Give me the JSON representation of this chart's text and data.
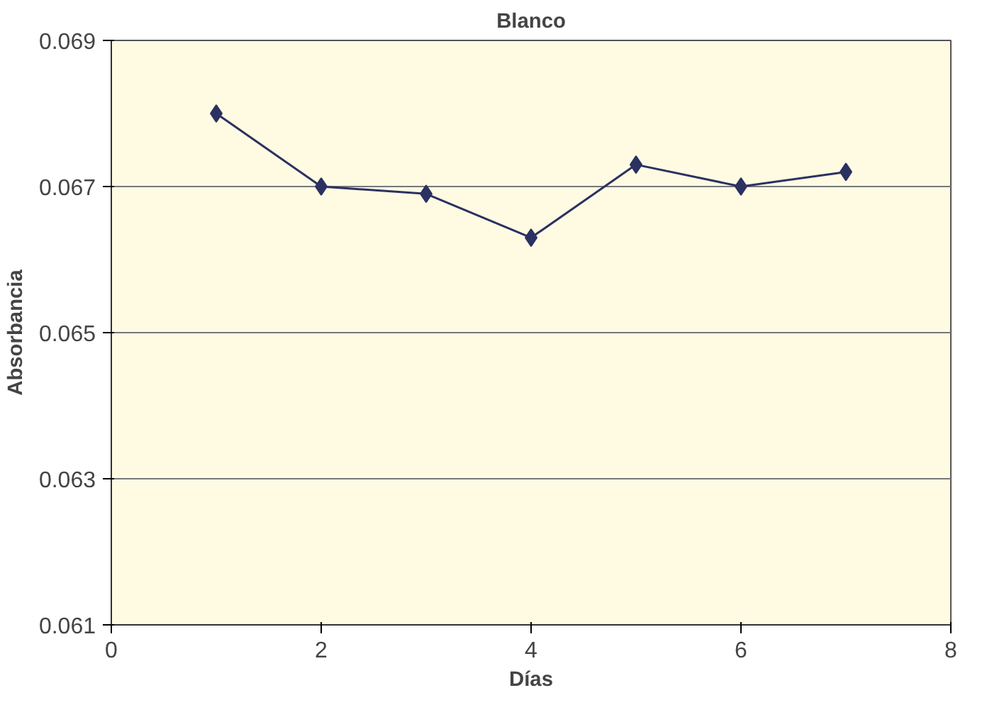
{
  "chart_data": {
    "type": "line",
    "title": "Blanco",
    "xlabel": "Días",
    "ylabel": "Absorbancia",
    "x": [
      1,
      2,
      3,
      4,
      5,
      6,
      7
    ],
    "series": [
      {
        "color": "#2b3160",
        "values": [
          0.068,
          0.067,
          0.0669,
          0.0663,
          0.0673,
          0.067,
          0.0672
        ]
      }
    ],
    "xlim": [
      0,
      8
    ],
    "xticks": [
      0,
      2,
      4,
      6,
      8
    ],
    "ylim": [
      0.061,
      0.069
    ],
    "yticks": [
      0.061,
      0.063,
      0.065,
      0.067,
      0.069
    ],
    "grid": "y",
    "marker": "diamond",
    "line_style": "solid"
  }
}
